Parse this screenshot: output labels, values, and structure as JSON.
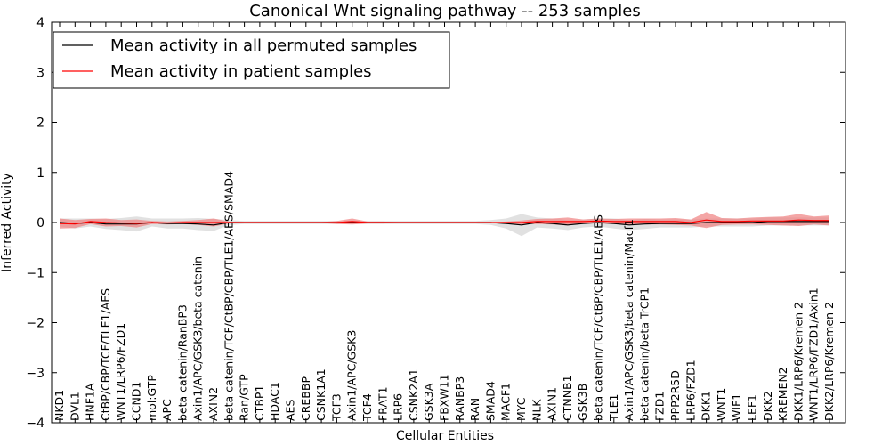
{
  "chart_data": {
    "type": "line",
    "title": "Canonical Wnt signaling pathway -- 253 samples",
    "xlabel": "Cellular Entities",
    "ylabel": "Inferred Activity",
    "ylim": [
      -4,
      4
    ],
    "yticks": [
      -4,
      -3,
      -2,
      -1,
      0,
      1,
      2,
      3,
      4
    ],
    "ytick_labels": [
      "−4",
      "−3",
      "−2",
      "−1",
      "0",
      "1",
      "2",
      "3",
      "4"
    ],
    "grid": false,
    "legend_position": "top-left",
    "categories": [
      "NKD1",
      "DVL1",
      "HNF1A",
      "CtBP/CBP/TCF/TLE1/AES",
      "WNT1/LRP6/FZD1",
      "CCND1",
      "mol:GTP",
      "APC",
      "beta catenin/RanBP3",
      "Axin1/APC/GSK3/beta catenin",
      "AXIN2",
      "beta catenin/TCF/CtBP/CBP/TLE1/AES/SMAD4",
      "Ran/GTP",
      "CTBP1",
      "HDAC1",
      "AES",
      "CREBBP",
      "CSNK1A1",
      "TCF3",
      "Axin1/APC/GSK3",
      "TCF4",
      "FRAT1",
      "LRP6",
      "CSNK2A1",
      "GSK3A",
      "FBXW11",
      "RANBP3",
      "RAN",
      "SMAD4",
      "MACF1",
      "MYC",
      "NLK",
      "AXIN1",
      "CTNNB1",
      "GSK3B",
      "beta catenin/TCF/CtBP/CBP/TLE1/AES",
      "TLE1",
      "Axin1/APC/GSK3/beta catenin/Macf1",
      "beta catenin/beta TrCP1",
      "FZD1",
      "PPP2R5D",
      "LRP6/FZD1",
      "DKK1",
      "WNT1",
      "WIF1",
      "LEF1",
      "DKK2",
      "KREMEN2",
      "DKK1/LRP6/Kremen 2",
      "WNT1/LRP6/FZD1/Axin1",
      "DKK2/LRP6/Kremen 2"
    ],
    "series": [
      {
        "name": "Mean activity in all permuted samples",
        "color": "#000000",
        "band_color": "#c8c8c8",
        "values": [
          0.0,
          -0.02,
          0.0,
          -0.03,
          -0.03,
          -0.03,
          0.0,
          -0.02,
          -0.02,
          -0.03,
          -0.05,
          0.0,
          0.0,
          0.0,
          0.0,
          0.0,
          0.0,
          0.0,
          0.0,
          0.0,
          0.0,
          0.0,
          0.0,
          0.0,
          0.0,
          0.0,
          0.0,
          0.0,
          0.0,
          -0.02,
          -0.05,
          0.0,
          -0.02,
          -0.05,
          -0.02,
          0.0,
          -0.02,
          -0.05,
          -0.03,
          -0.02,
          -0.02,
          -0.02,
          0.0,
          0.0,
          0.0,
          0.0,
          0.02,
          0.02,
          0.02,
          0.02,
          0.02
        ],
        "band": [
          0.08,
          0.1,
          0.08,
          0.1,
          0.12,
          0.15,
          0.08,
          0.1,
          0.1,
          0.12,
          0.12,
          0.05,
          0.03,
          0.03,
          0.03,
          0.03,
          0.03,
          0.03,
          0.03,
          0.03,
          0.03,
          0.03,
          0.03,
          0.03,
          0.03,
          0.03,
          0.03,
          0.03,
          0.05,
          0.1,
          0.22,
          0.1,
          0.1,
          0.1,
          0.08,
          0.08,
          0.1,
          0.1,
          0.1,
          0.08,
          0.08,
          0.08,
          0.08,
          0.08,
          0.08,
          0.08,
          0.08,
          0.08,
          0.08,
          0.08,
          0.08
        ]
      },
      {
        "name": "Mean activity in patient samples",
        "color": "#ff0000",
        "band_color": "#f08080",
        "values": [
          -0.02,
          -0.03,
          0.02,
          0.0,
          -0.01,
          -0.02,
          0.0,
          -0.01,
          0.0,
          0.0,
          0.0,
          0.0,
          0.0,
          0.0,
          0.0,
          0.0,
          0.0,
          0.0,
          0.0,
          0.02,
          0.0,
          0.0,
          0.0,
          0.0,
          0.0,
          0.0,
          0.0,
          0.0,
          0.0,
          0.0,
          0.0,
          0.02,
          0.02,
          0.02,
          0.02,
          0.03,
          0.02,
          0.02,
          0.02,
          0.02,
          0.02,
          0.0,
          0.05,
          0.02,
          0.02,
          0.03,
          0.03,
          0.03,
          0.05,
          0.04,
          0.04
        ],
        "band": [
          0.1,
          0.08,
          0.05,
          0.08,
          0.06,
          0.08,
          0.03,
          0.03,
          0.03,
          0.05,
          0.08,
          0.02,
          0.01,
          0.01,
          0.01,
          0.01,
          0.01,
          0.01,
          0.03,
          0.06,
          0.02,
          0.02,
          0.01,
          0.01,
          0.01,
          0.01,
          0.01,
          0.01,
          0.01,
          0.02,
          0.04,
          0.05,
          0.06,
          0.08,
          0.04,
          0.05,
          0.05,
          0.06,
          0.06,
          0.06,
          0.07,
          0.06,
          0.16,
          0.07,
          0.06,
          0.07,
          0.08,
          0.09,
          0.12,
          0.08,
          0.1
        ]
      }
    ]
  }
}
